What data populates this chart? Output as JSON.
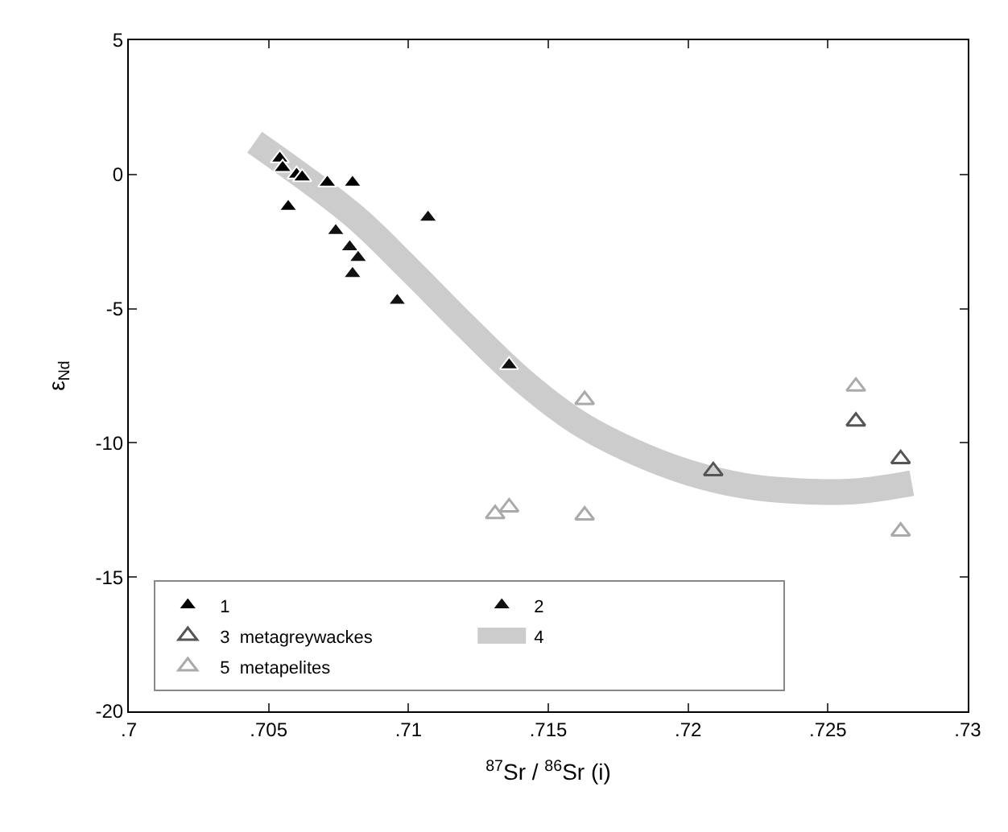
{
  "chart_data": {
    "type": "scatter",
    "xlabel": "$^{87}$Sr / $^{86}$Sr (i)",
    "ylabel": "ε$_{Nd}$",
    "xlim": [
      0.7,
      0.73
    ],
    "ylim": [
      -20,
      5
    ],
    "xticks": [
      {
        "value": 0.7,
        "label": ".7"
      },
      {
        "value": 0.705,
        "label": ".705"
      },
      {
        "value": 0.71,
        "label": ".71"
      },
      {
        "value": 0.715,
        "label": ".715"
      },
      {
        "value": 0.72,
        "label": ".72"
      },
      {
        "value": 0.725,
        "label": ".725"
      },
      {
        "value": 0.73,
        "label": ".73"
      }
    ],
    "yticks": [
      5,
      0,
      -5,
      -10,
      -15,
      -20
    ],
    "legend": "bottom left",
    "marker": "triangle",
    "series": [
      {
        "name": "1",
        "color": "#000000",
        "x": [
          0.7054,
          0.7055,
          0.706,
          0.7062,
          0.7071,
          0.708,
          0.7057
        ],
        "values": [
          0.6,
          0.25,
          0,
          -0.1,
          -0.3,
          -0.3,
          -1.2
        ]
      },
      {
        "name": "2",
        "color": "#111111",
        "x": [
          0.7107,
          0.7074,
          0.7079,
          0.7082,
          0.708,
          0.7096,
          0.7136
        ],
        "values": [
          -1.6,
          -2.1,
          -2.7,
          -3.1,
          -3.7,
          -4.7,
          -7.1
        ]
      },
      {
        "name": "3  metagreywackes",
        "color": "#555555",
        "x": [
          0.7209,
          0.7276,
          0.726
        ],
        "values": [
          -11.05,
          -10.6,
          -9.2
        ]
      },
      {
        "name": "4",
        "type": "line",
        "marker": "none",
        "color": "#cccccc",
        "x": [
          0.7045,
          0.708,
          0.71,
          0.712,
          0.714,
          0.716,
          0.718,
          0.72,
          0.722,
          0.724,
          0.726,
          0.728
        ],
        "values": [
          1.2,
          -1.5,
          -3.5,
          -5.6,
          -7.6,
          -9.2,
          -10.3,
          -11.1,
          -11.6,
          -11.8,
          -11.8,
          -11.5
        ]
      },
      {
        "name": "5  metapelites",
        "color": "#aaaaaa",
        "x": [
          0.7276,
          0.7163,
          0.7131,
          0.7136,
          0.7163,
          0.726
        ],
        "values": [
          -13.3,
          -12.7,
          -12.65,
          -12.4,
          -8.4,
          -7.9
        ]
      }
    ]
  }
}
